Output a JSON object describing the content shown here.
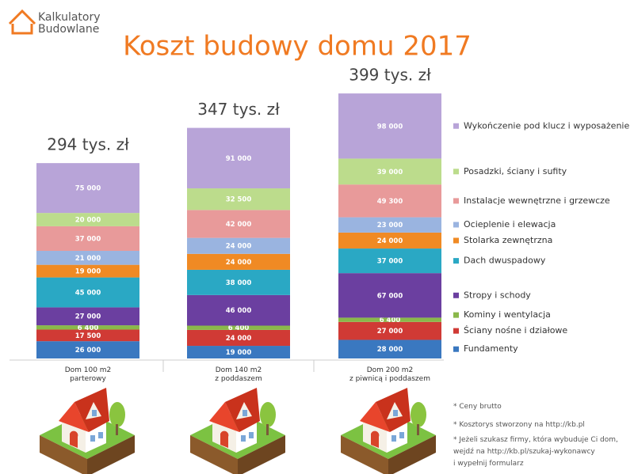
{
  "logo": {
    "line1": "Kalkulatory",
    "line2": "Budowlane"
  },
  "chart_data": {
    "type": "stacked-bar",
    "title": "Koszt budowy domu 2017",
    "categories": [
      "Dom 100 m2\nparterowy",
      "Dom 140 m2\nz poddaszem",
      "Dom 200 m2\nz piwnicą i poddaszem"
    ],
    "totals": [
      294000,
      347000,
      399000
    ],
    "total_labels": [
      "294 tys. zł",
      "347 tys. zł",
      "399 tys. zł"
    ],
    "series": [
      {
        "name": "Fundamenty",
        "color": "#3a78c0",
        "values": [
          26000,
          19000,
          28000
        ],
        "value_labels": [
          "26 000",
          "19 000",
          "28 000"
        ]
      },
      {
        "name": "Ściany nośne i działowe",
        "color": "#d03a35",
        "values": [
          17500,
          24000,
          27000
        ],
        "value_labels": [
          "17 500",
          "24 000",
          "27 000"
        ]
      },
      {
        "name": "Kominy i wentylacja",
        "color": "#8ab84a",
        "values": [
          6400,
          6400,
          6400
        ],
        "value_labels": [
          "6 400",
          "6 400",
          "6 400"
        ]
      },
      {
        "name": "Stropy i schody",
        "color": "#6b3fa0",
        "values": [
          27000,
          46000,
          67000
        ],
        "value_labels": [
          "27 000",
          "46 000",
          "67 000"
        ]
      },
      {
        "name": "Dach dwuspadowy",
        "color": "#2aa8c4",
        "values": [
          45000,
          38000,
          37000
        ],
        "value_labels": [
          "45 000",
          "38 000",
          "37 000"
        ]
      },
      {
        "name": "Stolarka zewnętrzna",
        "color": "#f08a24",
        "values": [
          19000,
          24000,
          24000
        ],
        "value_labels": [
          "19 000",
          "24 000",
          "24 000"
        ]
      },
      {
        "name": "Ocieplenie i elewacja",
        "color": "#9ab4e0",
        "values": [
          21000,
          24000,
          23000
        ],
        "value_labels": [
          "21 000",
          "24 000",
          "23 000"
        ]
      },
      {
        "name": "Instalacje wewnętrzne i grzewcze",
        "color": "#e89a9a",
        "values": [
          37000,
          42000,
          49300
        ],
        "value_labels": [
          "37 000",
          "42 000",
          "49 300"
        ]
      },
      {
        "name": "Posadzki, ściany i sufity",
        "color": "#bcdc8c",
        "values": [
          20000,
          32500,
          39000
        ],
        "value_labels": [
          "20 000",
          "32 500",
          "39 000"
        ]
      },
      {
        "name": "Wykończenie pod klucz i wyposażenie",
        "color": "#b8a4d8",
        "values": [
          75000,
          91000,
          98000
        ],
        "value_labels": [
          "75 000",
          "91 000",
          "98 000"
        ]
      }
    ]
  },
  "notes": [
    "* Ceny brutto",
    "* Kosztorys stworzony na http://kb.pl",
    "* Jeżeli szukasz firmy, która wybuduje Ci dom,\nwejdź na http://kb.pl/szukaj-wykonawcy\ni wypełnij formularz"
  ]
}
